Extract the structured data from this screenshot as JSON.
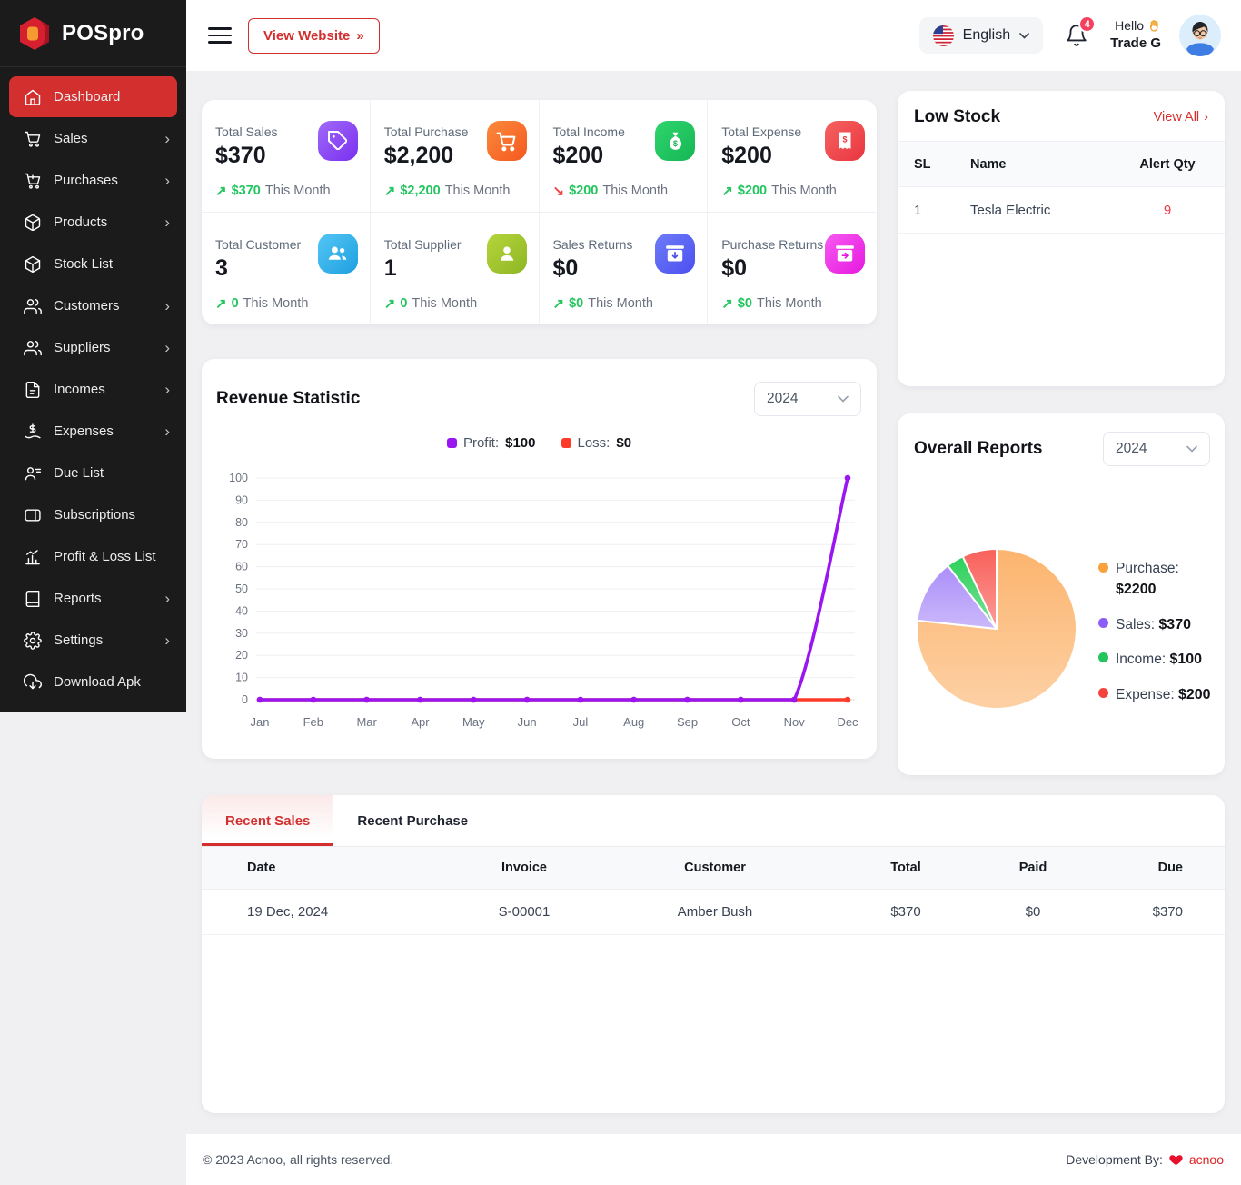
{
  "brand": {
    "name": "POSpro"
  },
  "sidebar": {
    "items": [
      {
        "label": "Dashboard",
        "icon": "home",
        "active": true,
        "chevron": false
      },
      {
        "label": "Sales",
        "icon": "cart",
        "active": false,
        "chevron": true
      },
      {
        "label": "Purchases",
        "icon": "cart-plus",
        "active": false,
        "chevron": true
      },
      {
        "label": "Products",
        "icon": "package",
        "active": false,
        "chevron": true
      },
      {
        "label": "Stock List",
        "icon": "cube",
        "active": false,
        "chevron": false
      },
      {
        "label": "Customers",
        "icon": "users",
        "active": false,
        "chevron": true
      },
      {
        "label": "Suppliers",
        "icon": "users",
        "active": false,
        "chevron": true
      },
      {
        "label": "Incomes",
        "icon": "invoice",
        "active": false,
        "chevron": true
      },
      {
        "label": "Expenses",
        "icon": "hand-coin",
        "active": false,
        "chevron": true
      },
      {
        "label": "Due List",
        "icon": "user-list",
        "active": false,
        "chevron": false
      },
      {
        "label": "Subscriptions",
        "icon": "card",
        "active": false,
        "chevron": false
      },
      {
        "label": "Profit & Loss List",
        "icon": "bar-chart",
        "active": false,
        "chevron": false
      },
      {
        "label": "Reports",
        "icon": "book",
        "active": false,
        "chevron": true
      },
      {
        "label": "Settings",
        "icon": "gear",
        "active": false,
        "chevron": true
      },
      {
        "label": "Download Apk",
        "icon": "cloud-download",
        "active": false,
        "chevron": false
      }
    ]
  },
  "header": {
    "view_website": "View Website",
    "language": "English",
    "notification_count": "4",
    "greeting": "Hello",
    "username": "Trade G"
  },
  "stats": [
    {
      "label": "Total Sales",
      "value": "$370",
      "trend": "$370",
      "suffix": "This Month",
      "dir": "up",
      "icon": "tag",
      "c1": "#a06af9",
      "c2": "#7a2ff0"
    },
    {
      "label": "Total Purchase",
      "value": "$2,200",
      "trend": "$2,200",
      "suffix": "This Month",
      "dir": "up",
      "icon": "cart",
      "c1": "#fb8a3c",
      "c2": "#f4581f"
    },
    {
      "label": "Total Income",
      "value": "$200",
      "trend": "$200",
      "suffix": "This Month",
      "dir": "down",
      "icon": "money-bag",
      "c1": "#2fd56d",
      "c2": "#16b655"
    },
    {
      "label": "Total Expense",
      "value": "$200",
      "trend": "$200",
      "suffix": "This Month",
      "dir": "up",
      "icon": "receipt",
      "c1": "#f66360",
      "c2": "#e93540"
    },
    {
      "label": "Total Customer",
      "value": "3",
      "trend": "0",
      "suffix": "This Month",
      "dir": "up",
      "icon": "users",
      "c1": "#53c6f5",
      "c2": "#1f9fe0"
    },
    {
      "label": "Total Supplier",
      "value": "1",
      "trend": "0",
      "suffix": "This Month",
      "dir": "up",
      "icon": "person",
      "c1": "#b6d53a",
      "c2": "#8db625"
    },
    {
      "label": "Sales Returns",
      "value": "$0",
      "trend": "$0",
      "suffix": "This Month",
      "dir": "up",
      "icon": "return-box",
      "c1": "#6d7cf8",
      "c2": "#4d4ff0"
    },
    {
      "label": "Purchase Returns",
      "value": "$0",
      "trend": "$0",
      "suffix": "This Month",
      "dir": "up",
      "icon": "return-box-alt",
      "c1": "#f75bf0",
      "c2": "#e518e0"
    }
  ],
  "low_stock": {
    "title": "Low Stock",
    "view_all": "View All",
    "columns": [
      "SL",
      "Name",
      "Alert Qty"
    ],
    "rows": [
      {
        "sl": "1",
        "name": "Tesla Electric",
        "qty": "9"
      }
    ]
  },
  "revenue": {
    "title": "Revenue Statistic",
    "year": "2024",
    "legend": [
      {
        "label": "Profit:",
        "value": "$100",
        "color": "#9916f0"
      },
      {
        "label": "Loss:",
        "value": "$0",
        "color": "#fb3a28"
      }
    ]
  },
  "overall": {
    "title": "Overall Reports",
    "year": "2024",
    "legend": [
      {
        "label": "Purchase:",
        "value": "$2200",
        "color": "#f9a13c"
      },
      {
        "label": "Sales:",
        "value": "$370",
        "color": "#8b5cf6"
      },
      {
        "label": "Income:",
        "value": "$100",
        "color": "#22c55e"
      },
      {
        "label": "Expense:",
        "value": "$200",
        "color": "#f4433c"
      }
    ]
  },
  "recent": {
    "tabs": [
      "Recent Sales",
      "Recent Purchase"
    ],
    "columns": [
      "Date",
      "Invoice",
      "Customer",
      "Total",
      "Paid",
      "Due"
    ],
    "rows": [
      [
        "19 Dec, 2024",
        "S-00001",
        "Amber Bush",
        "$370",
        "$0",
        "$370"
      ]
    ]
  },
  "footer": {
    "copyright": "© 2023 Acnoo, all rights reserved.",
    "dev_prefix": "Development By:",
    "dev_name": "acnoo"
  },
  "chart_data": [
    {
      "type": "line",
      "title": "Revenue Statistic",
      "x": [
        "Jan",
        "Feb",
        "Mar",
        "Apr",
        "May",
        "Jun",
        "Jul",
        "Aug",
        "Sep",
        "Oct",
        "Nov",
        "Dec"
      ],
      "series": [
        {
          "name": "Profit",
          "color": "#9916f0",
          "values": [
            0,
            0,
            0,
            0,
            0,
            0,
            0,
            0,
            0,
            0,
            0,
            100
          ]
        },
        {
          "name": "Loss",
          "color": "#fb3a28",
          "values": [
            0,
            0,
            0,
            0,
            0,
            0,
            0,
            0,
            0,
            0,
            0,
            0
          ]
        }
      ],
      "xlabel": "",
      "ylabel": "",
      "ylim": [
        0,
        100
      ],
      "yticks": [
        0,
        10,
        20,
        30,
        40,
        50,
        60,
        70,
        80,
        90,
        100
      ],
      "grid": "horizontal",
      "legend_position": "top"
    },
    {
      "type": "pie",
      "labels": [
        "Purchase",
        "Sales",
        "Income",
        "Expense"
      ],
      "values": [
        2200,
        370,
        100,
        200
      ],
      "colors": [
        "#fcb46e",
        "#ab8ef9",
        "#2bd05a",
        "#f9605a"
      ],
      "legend_position": "right"
    }
  ]
}
